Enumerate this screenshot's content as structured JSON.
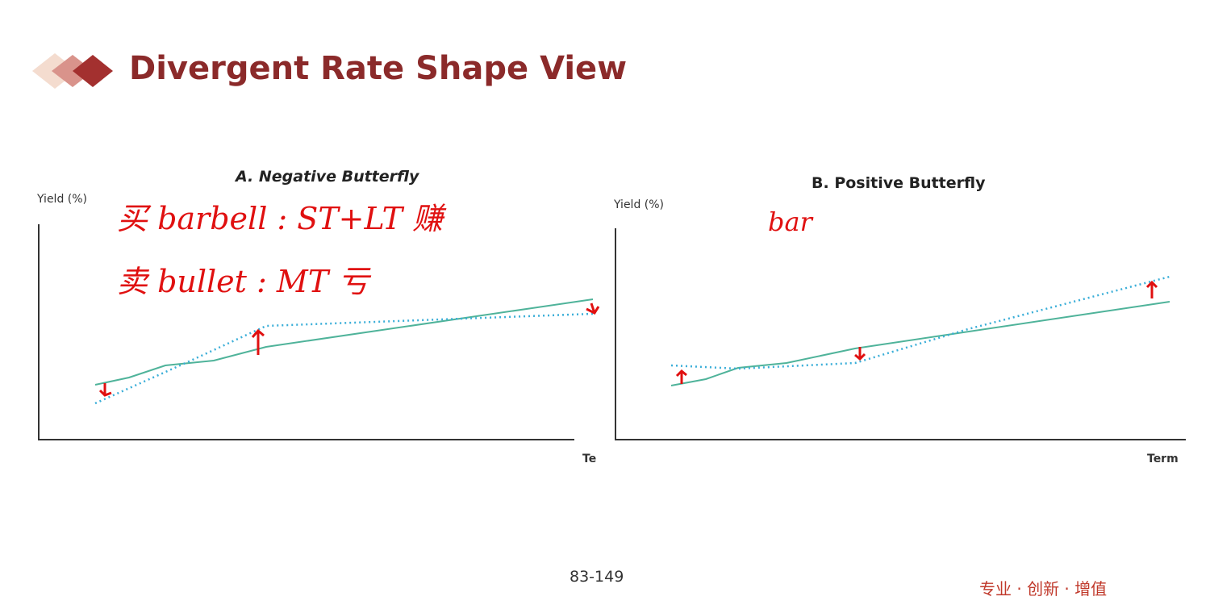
{
  "header": {
    "title": "Divergent Rate Shape View"
  },
  "panels": [
    {
      "title": "A. Negative Butterfly",
      "y_label": "Yield (%)",
      "x_label": "Te"
    },
    {
      "title": "B. Positive Butterfly",
      "y_label": "Yield (%)",
      "x_label": "Term"
    }
  ],
  "annotations": [
    "买 barbell : ST+LT 赚",
    "卖 bullet : MT 亏",
    "bar"
  ],
  "footer": {
    "page": "83-149",
    "slogan": "专业 · 创新 · 增值"
  }
}
